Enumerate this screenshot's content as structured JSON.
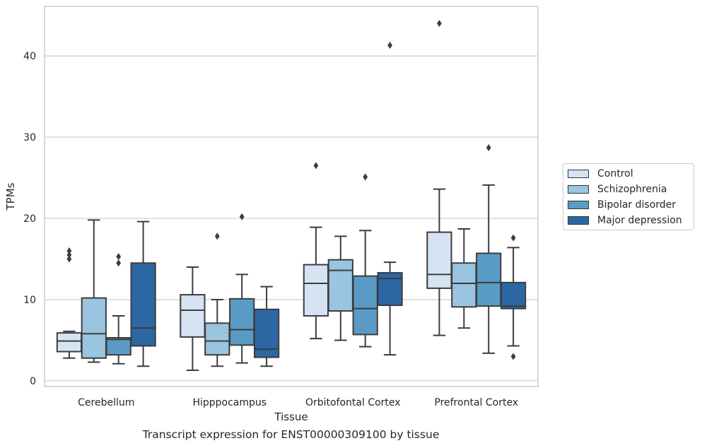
{
  "chart_data": {
    "type": "box",
    "title": "",
    "caption": "Transcript expression for ENST00000309100 by tissue",
    "xlabel": "Tissue",
    "ylabel": "TPMs",
    "ylim": [
      -0.7,
      46.1
    ],
    "yticks": [
      0,
      10,
      20,
      30,
      40
    ],
    "grid": "horizontal",
    "legend_position": "right",
    "categories": [
      "Cerebellum",
      "Hipppocampus",
      "Orbitofontal Cortex",
      "Prefrontal Cortex"
    ],
    "series": [
      {
        "name": "Control",
        "color": "#d6e3f2",
        "boxes": [
          {
            "whislo": 2.8,
            "q1": 3.6,
            "med": 4.9,
            "q3": 5.9,
            "whishi": 6.1,
            "fliers": [
              15.0,
              15.5,
              16.0
            ]
          },
          {
            "whislo": 1.3,
            "q1": 5.4,
            "med": 8.7,
            "q3": 10.6,
            "whishi": 14.0,
            "fliers": []
          },
          {
            "whislo": 5.2,
            "q1": 8.0,
            "med": 12.0,
            "q3": 14.3,
            "whishi": 18.9,
            "fliers": [
              26.5
            ]
          },
          {
            "whislo": 5.6,
            "q1": 11.4,
            "med": 13.1,
            "q3": 18.3,
            "whishi": 23.6,
            "fliers": [
              44.0
            ]
          }
        ]
      },
      {
        "name": "Schizophrenia",
        "color": "#9ac4df",
        "boxes": [
          {
            "whislo": 2.3,
            "q1": 2.8,
            "med": 5.8,
            "q3": 10.2,
            "whishi": 19.8,
            "fliers": []
          },
          {
            "whislo": 1.8,
            "q1": 3.2,
            "med": 4.9,
            "q3": 7.1,
            "whishi": 10.0,
            "fliers": [
              17.8
            ]
          },
          {
            "whislo": 5.0,
            "q1": 8.6,
            "med": 13.6,
            "q3": 14.9,
            "whishi": 17.8,
            "fliers": []
          },
          {
            "whislo": 6.5,
            "q1": 9.1,
            "med": 12.0,
            "q3": 14.5,
            "whishi": 18.7,
            "fliers": []
          }
        ]
      },
      {
        "name": "Bipolar disorder",
        "color": "#5a9bc6",
        "boxes": [
          {
            "whislo": 2.1,
            "q1": 3.2,
            "med": 5.1,
            "q3": 5.3,
            "whishi": 8.0,
            "fliers": [
              14.5,
              15.3
            ]
          },
          {
            "whislo": 2.2,
            "q1": 4.4,
            "med": 6.3,
            "q3": 10.1,
            "whishi": 13.1,
            "fliers": [
              20.2
            ]
          },
          {
            "whislo": 4.2,
            "q1": 5.7,
            "med": 8.9,
            "q3": 12.9,
            "whishi": 18.5,
            "fliers": [
              25.1
            ]
          },
          {
            "whislo": 3.4,
            "q1": 9.2,
            "med": 12.1,
            "q3": 15.7,
            "whishi": 24.1,
            "fliers": [
              28.7
            ]
          }
        ]
      },
      {
        "name": "Major depression",
        "color": "#2c67a4",
        "boxes": [
          {
            "whislo": 1.8,
            "q1": 4.3,
            "med": 6.5,
            "q3": 14.5,
            "whishi": 19.6,
            "fliers": []
          },
          {
            "whislo": 1.8,
            "q1": 2.9,
            "med": 3.9,
            "q3": 8.8,
            "whishi": 11.6,
            "fliers": []
          },
          {
            "whislo": 3.2,
            "q1": 9.3,
            "med": 12.6,
            "q3": 13.3,
            "whishi": 14.6,
            "fliers": [
              41.3
            ]
          },
          {
            "whislo": 4.3,
            "q1": 8.9,
            "med": 9.2,
            "q3": 12.1,
            "whishi": 16.4,
            "fliers": [
              17.6,
              3.0
            ]
          }
        ]
      }
    ]
  }
}
